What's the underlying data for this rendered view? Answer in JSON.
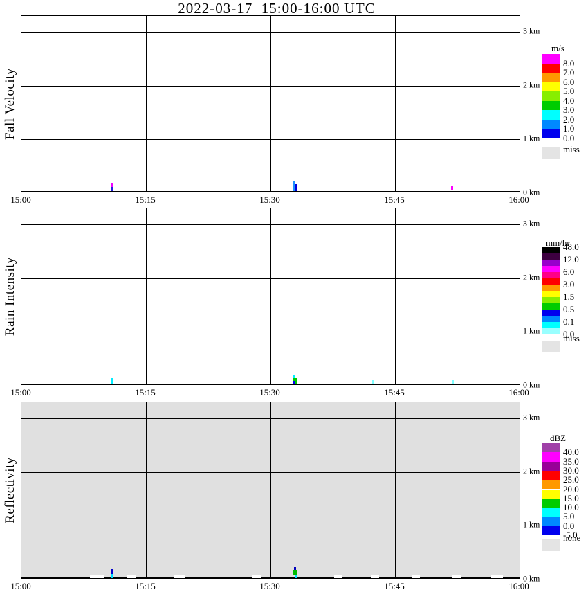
{
  "title": "2022-03-17  15:00-16:00 UTC",
  "axes": {
    "time_ticks": [
      "15:00",
      "15:15",
      "15:30",
      "15:45",
      "16:00"
    ],
    "height_ticks": [
      "3 km",
      "2 km",
      "1 km",
      "0 km"
    ]
  },
  "panels": [
    {
      "ylabel": "Fall Velocity",
      "background": "#ffffff",
      "specks": [
        {
          "x": 130,
          "b": 7,
          "w": 3,
          "h": 6,
          "c": "#ee00ff"
        },
        {
          "x": 130,
          "b": 1,
          "w": 3,
          "h": 6,
          "c": "#2222dd"
        },
        {
          "x": 392,
          "b": 1,
          "w": 3,
          "h": 15,
          "c": "#1e90ff"
        },
        {
          "x": 395,
          "b": 1,
          "w": 4,
          "h": 10,
          "c": "#0000dd"
        },
        {
          "x": 621,
          "b": 2,
          "w": 3,
          "h": 7,
          "c": "#ff00ff"
        }
      ],
      "missing_marks": []
    },
    {
      "ylabel": "Rain Intensity",
      "background": "#ffffff",
      "specks": [
        {
          "x": 130,
          "b": 1,
          "w": 3,
          "h": 8,
          "c": "#00eeff"
        },
        {
          "x": 392,
          "b": 9,
          "w": 3,
          "h": 4,
          "c": "#00eeff"
        },
        {
          "x": 392,
          "b": 5,
          "w": 7,
          "h": 4,
          "c": "#00cc00"
        },
        {
          "x": 392,
          "b": 1,
          "w": 3,
          "h": 4,
          "c": "#0000ee"
        },
        {
          "x": 395,
          "b": 1,
          "w": 3,
          "h": 4,
          "c": "#00cc00"
        },
        {
          "x": 507,
          "b": 1,
          "w": 3,
          "h": 5,
          "c": "#7dffff"
        },
        {
          "x": 622,
          "b": 1,
          "w": 3,
          "h": 5,
          "c": "#7dffff"
        }
      ],
      "missing_marks": []
    },
    {
      "ylabel": "Reflectivity",
      "background": "#e0e0e0",
      "specks": [
        {
          "x": 130,
          "b": 6,
          "w": 3,
          "h": 7,
          "c": "#0000cc"
        },
        {
          "x": 130,
          "b": 0,
          "w": 3,
          "h": 6,
          "c": "#00ddff"
        },
        {
          "x": 394,
          "b": 12,
          "w": 3,
          "h": 4,
          "c": "#0000bb"
        },
        {
          "x": 393,
          "b": 4,
          "w": 5,
          "h": 8,
          "c": "#00bb00"
        },
        {
          "x": 396,
          "b": 0,
          "w": 3,
          "h": 5,
          "c": "#00ddff"
        }
      ],
      "missing_marks": [
        {
          "x": 99,
          "w": 20
        },
        {
          "x": 152,
          "w": 14
        },
        {
          "x": 221,
          "w": 15
        },
        {
          "x": 334,
          "w": 13
        },
        {
          "x": 452,
          "w": 12
        },
        {
          "x": 506,
          "w": 11
        },
        {
          "x": 564,
          "w": 12
        },
        {
          "x": 622,
          "w": 14
        },
        {
          "x": 679,
          "w": 17
        }
      ]
    }
  ],
  "colorbars": [
    {
      "unit": "m/s",
      "blocks": [
        {
          "c": "#ff00ff",
          "label": "8.0"
        },
        {
          "c": "#ff0000",
          "label": "7.0"
        },
        {
          "c": "#ff9900",
          "label": "6.0"
        },
        {
          "c": "#ffff00",
          "label": "5.0"
        },
        {
          "c": "#88ee00",
          "label": "4.0"
        },
        {
          "c": "#00cc00",
          "label": "3.0"
        },
        {
          "c": "#00ffff",
          "label": "2.0"
        },
        {
          "c": "#0088ff",
          "label": "1.0"
        },
        {
          "c": "#0000ee",
          "label": "0.0"
        }
      ],
      "miss": {
        "c": "#e4e4e4",
        "label": "miss"
      }
    },
    {
      "unit": "mm/hr",
      "blocks": [
        {
          "c": "#000000",
          "label": "48.0"
        },
        {
          "c": "#3d0040",
          "label": ""
        },
        {
          "c": "#9900cc",
          "label": "12.0"
        },
        {
          "c": "#ff00ff",
          "label": ""
        },
        {
          "c": "#ff0088",
          "label": "6.0"
        },
        {
          "c": "#ff0000",
          "label": ""
        },
        {
          "c": "#ff9900",
          "label": "3.0"
        },
        {
          "c": "#ffff00",
          "label": ""
        },
        {
          "c": "#88ee00",
          "label": "1.5"
        },
        {
          "c": "#00cc00",
          "label": ""
        },
        {
          "c": "#0000ee",
          "label": "0.5"
        },
        {
          "c": "#0088ff",
          "label": ""
        },
        {
          "c": "#00ffff",
          "label": "0.1"
        },
        {
          "c": "#99ffff",
          "label": "0.0"
        }
      ],
      "miss": {
        "c": "#e4e4e4",
        "label": "miss"
      }
    },
    {
      "unit": "dBZ",
      "blocks": [
        {
          "c": "#a040a8",
          "label": "40.0"
        },
        {
          "c": "#ff00ff",
          "label": "35.0"
        },
        {
          "c": "#990099",
          "label": "30.0"
        },
        {
          "c": "#ff0000",
          "label": "25.0"
        },
        {
          "c": "#ff9900",
          "label": "20.0"
        },
        {
          "c": "#ffff00",
          "label": "15.0"
        },
        {
          "c": "#00cc00",
          "label": "10.0"
        },
        {
          "c": "#00ffff",
          "label": "5.0"
        },
        {
          "c": "#0088ff",
          "label": "0.0"
        },
        {
          "c": "#0000ee",
          "label": "-5.0"
        }
      ],
      "miss": {
        "c": "#e4e4e4",
        "label": "none"
      }
    }
  ],
  "chart_data": [
    {
      "type": "heatmap",
      "title": "Fall Velocity",
      "unit": "m/s",
      "x_range": [
        "15:00",
        "16:00"
      ],
      "x_ticks": [
        "15:00",
        "15:15",
        "15:30",
        "15:45",
        "16:00"
      ],
      "y_range_km": [
        0,
        3.3
      ],
      "y_ticks": [
        "0 km",
        "1 km",
        "2 km",
        "3 km"
      ],
      "legend_levels": [
        8.0,
        7.0,
        6.0,
        5.0,
        4.0,
        3.0,
        2.0,
        1.0,
        0.0
      ],
      "legend_missing": "miss",
      "grid": true,
      "legend_position": "right",
      "data_points": [
        {
          "time": "15:11",
          "height_km": [
            0,
            0.15
          ],
          "values_mps": [
            8.5,
            0.5
          ]
        },
        {
          "time": "15:33",
          "height_km": [
            0,
            0.2
          ],
          "values_mps": [
            1.5,
            0.5
          ]
        },
        {
          "time": "15:52",
          "height_km": [
            0,
            0.1
          ],
          "values_mps": [
            8.5
          ]
        }
      ],
      "note": "panel otherwise empty (no precipitation signal)"
    },
    {
      "type": "heatmap",
      "title": "Rain Intensity",
      "unit": "mm/hr",
      "x_range": [
        "15:00",
        "16:00"
      ],
      "x_ticks": [
        "15:00",
        "15:15",
        "15:30",
        "15:45",
        "16:00"
      ],
      "y_range_km": [
        0,
        3.3
      ],
      "y_ticks": [
        "0 km",
        "1 km",
        "2 km",
        "3 km"
      ],
      "legend_levels": [
        48.0,
        12.0,
        6.0,
        3.0,
        1.5,
        0.5,
        0.1,
        0.0
      ],
      "legend_missing": "miss",
      "grid": true,
      "legend_position": "right",
      "data_points": [
        {
          "time": "15:11",
          "height_km": [
            0,
            0.1
          ],
          "values_mmhr": [
            0.1
          ]
        },
        {
          "time": "15:33",
          "height_km": [
            0,
            0.15
          ],
          "values_mmhr": [
            1.0,
            0.3,
            0.1
          ]
        },
        {
          "time": "15:43",
          "height_km": [
            0,
            0.05
          ],
          "values_mmhr": [
            0.05
          ]
        },
        {
          "time": "15:52",
          "height_km": [
            0,
            0.05
          ],
          "values_mmhr": [
            0.05
          ]
        }
      ],
      "note": "panel otherwise empty"
    },
    {
      "type": "heatmap",
      "title": "Reflectivity",
      "unit": "dBZ",
      "x_range": [
        "15:00",
        "16:00"
      ],
      "x_ticks": [
        "15:00",
        "15:15",
        "15:30",
        "15:45",
        "16:00"
      ],
      "y_range_km": [
        0,
        3.3
      ],
      "y_ticks": [
        "0 km",
        "1 km",
        "2 km",
        "3 km"
      ],
      "legend_levels": [
        40.0,
        35.0,
        30.0,
        25.0,
        20.0,
        15.0,
        10.0,
        5.0,
        0.0,
        -5.0
      ],
      "legend_missing": "none",
      "grid": true,
      "legend_position": "right",
      "background_value": "none (gray fill over whole panel)",
      "data_points": [
        {
          "time": "15:11",
          "height_km": [
            0,
            0.15
          ],
          "values_dbz": [
            0,
            7
          ]
        },
        {
          "time": "15:33",
          "height_km": [
            0,
            0.2
          ],
          "values_dbz": [
            0,
            12,
            7
          ]
        },
        {
          "time": "15:08-15:58 scattered",
          "height_km": [
            0,
            0.05
          ],
          "values_dbz": "< -5 (white marks)"
        }
      ]
    }
  ]
}
